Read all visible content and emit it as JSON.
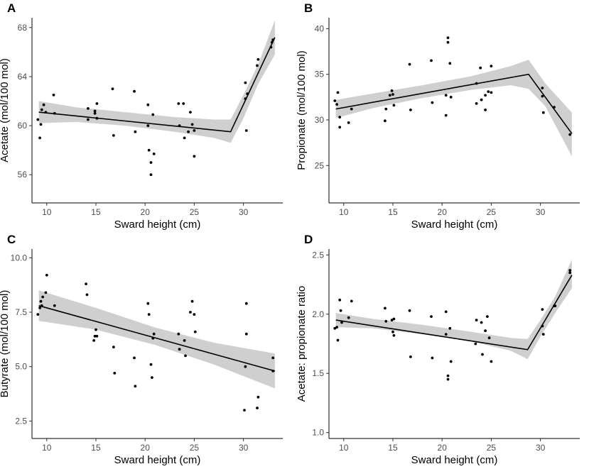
{
  "figure": {
    "xlabel": "Sward height (cm)",
    "xlim": [
      8.5,
      34.0
    ],
    "xticks": [
      10,
      15,
      20,
      25,
      30
    ],
    "xtick_labels": [
      "10",
      "15",
      "20",
      "25",
      "30"
    ]
  },
  "chart_data": [
    {
      "panel": "A",
      "type": "scatter",
      "ylabel": "Acetate (mol/100 mol)",
      "xlabel": "Sward height (cm)",
      "ylim": [
        53.7,
        68.8
      ],
      "yticks": [
        56,
        60,
        64,
        68
      ],
      "ytick_labels": [
        "56",
        "60",
        "64",
        "68"
      ],
      "points": [
        [
          9.1,
          60.5
        ],
        [
          9.3,
          59.0
        ],
        [
          9.4,
          60.1
        ],
        [
          9.5,
          61.3
        ],
        [
          9.7,
          61.7
        ],
        [
          9.9,
          61.1
        ],
        [
          10.7,
          62.5
        ],
        [
          10.8,
          61.0
        ],
        [
          14.2,
          60.5
        ],
        [
          14.2,
          61.4
        ],
        [
          14.9,
          61.2
        ],
        [
          14.9,
          61.0
        ],
        [
          15.1,
          61.8
        ],
        [
          15.1,
          60.6
        ],
        [
          16.7,
          63.0
        ],
        [
          16.8,
          59.2
        ],
        [
          18.9,
          62.8
        ],
        [
          19.0,
          59.5
        ],
        [
          20.3,
          61.7
        ],
        [
          20.3,
          60.0
        ],
        [
          20.4,
          58.0
        ],
        [
          20.6,
          57.0
        ],
        [
          20.6,
          56.0
        ],
        [
          20.8,
          60.9
        ],
        [
          20.9,
          57.7
        ],
        [
          23.4,
          61.8
        ],
        [
          23.5,
          60.0
        ],
        [
          23.9,
          61.8
        ],
        [
          24.0,
          59.0
        ],
        [
          24.4,
          59.5
        ],
        [
          24.6,
          61.1
        ],
        [
          24.8,
          60.1
        ],
        [
          25.0,
          57.5
        ],
        [
          25.0,
          59.6
        ],
        [
          30.2,
          63.5
        ],
        [
          30.2,
          62.2
        ],
        [
          30.3,
          59.6
        ],
        [
          30.4,
          62.6
        ],
        [
          31.4,
          64.9
        ],
        [
          31.5,
          65.4
        ],
        [
          32.8,
          66.4
        ],
        [
          32.9,
          66.8
        ],
        [
          33.0,
          67.0
        ]
      ],
      "fit": [
        [
          9.2,
          61.1
        ],
        [
          28.7,
          59.5
        ],
        [
          33.2,
          67.2
        ]
      ],
      "band_upper": [
        [
          9.2,
          62.0
        ],
        [
          13,
          61.5
        ],
        [
          18,
          61.1
        ],
        [
          23,
          60.7
        ],
        [
          27,
          60.5
        ],
        [
          28.7,
          60.5
        ],
        [
          30,
          62.5
        ],
        [
          31.5,
          65.0
        ],
        [
          33.2,
          68.6
        ]
      ],
      "band_lower": [
        [
          9.2,
          60.2
        ],
        [
          13,
          60.3
        ],
        [
          18,
          60.0
        ],
        [
          23,
          59.5
        ],
        [
          27,
          59.0
        ],
        [
          28.7,
          58.6
        ],
        [
          30,
          60.6
        ],
        [
          31.5,
          63.4
        ],
        [
          33.2,
          65.8
        ]
      ]
    },
    {
      "panel": "B",
      "type": "scatter",
      "ylabel": "Propionate (mol/100 mol)",
      "xlabel": "Sward height (cm)",
      "ylim": [
        20.9,
        41.2
      ],
      "yticks": [
        25,
        30,
        35,
        40
      ],
      "ytick_labels": [
        "25",
        "30",
        "35",
        "40"
      ],
      "points": [
        [
          9.1,
          32.1
        ],
        [
          9.3,
          31.7
        ],
        [
          9.4,
          33.0
        ],
        [
          9.6,
          29.2
        ],
        [
          9.6,
          30.3
        ],
        [
          10.5,
          29.7
        ],
        [
          10.8,
          31.2
        ],
        [
          14.2,
          29.9
        ],
        [
          14.3,
          31.2
        ],
        [
          14.7,
          32.7
        ],
        [
          14.9,
          33.2
        ],
        [
          15.0,
          32.8
        ],
        [
          15.1,
          31.6
        ],
        [
          16.7,
          36.1
        ],
        [
          16.8,
          31.1
        ],
        [
          18.9,
          36.5
        ],
        [
          19.0,
          31.9
        ],
        [
          20.4,
          30.5
        ],
        [
          20.4,
          32.7
        ],
        [
          20.6,
          39.0
        ],
        [
          20.6,
          38.5
        ],
        [
          20.8,
          36.2
        ],
        [
          20.9,
          32.5
        ],
        [
          23.5,
          34.0
        ],
        [
          23.5,
          31.8
        ],
        [
          23.9,
          35.7
        ],
        [
          24.0,
          32.2
        ],
        [
          24.4,
          31.1
        ],
        [
          24.4,
          32.7
        ],
        [
          24.7,
          33.1
        ],
        [
          25.0,
          33.0
        ],
        [
          25.0,
          35.9
        ],
        [
          30.2,
          33.5
        ],
        [
          30.2,
          32.6
        ],
        [
          30.3,
          30.8
        ],
        [
          31.4,
          31.4
        ],
        [
          33.0,
          28.4
        ]
      ],
      "fit": [
        [
          9.2,
          31.2
        ],
        [
          28.8,
          35.0
        ],
        [
          33.2,
          28.5
        ]
      ],
      "band_upper": [
        [
          9.2,
          32.2
        ],
        [
          13,
          32.9
        ],
        [
          18,
          33.8
        ],
        [
          23,
          34.8
        ],
        [
          27,
          35.9
        ],
        [
          28.8,
          36.6
        ],
        [
          30.5,
          34.0
        ],
        [
          33.2,
          30.8
        ]
      ],
      "band_lower": [
        [
          9.2,
          30.2
        ],
        [
          13,
          31.3
        ],
        [
          18,
          32.4
        ],
        [
          23,
          33.3
        ],
        [
          27,
          33.8
        ],
        [
          28.8,
          33.4
        ],
        [
          30.5,
          31.5
        ],
        [
          33.2,
          26.0
        ]
      ]
    },
    {
      "panel": "C",
      "type": "scatter",
      "ylabel": "Butyrate (mol/100 mol)",
      "xlabel": "Sward height (cm)",
      "ylim": [
        1.7,
        10.4
      ],
      "yticks": [
        2.5,
        5.0,
        7.5,
        10.0
      ],
      "ytick_labels": [
        "2.5",
        "5.0",
        "7.5",
        "10.0"
      ],
      "points": [
        [
          9.1,
          7.4
        ],
        [
          9.3,
          7.7
        ],
        [
          9.4,
          8.0
        ],
        [
          9.5,
          7.8
        ],
        [
          9.6,
          8.2
        ],
        [
          9.9,
          8.4
        ],
        [
          10.0,
          9.2
        ],
        [
          10.8,
          7.8
        ],
        [
          14.0,
          8.8
        ],
        [
          14.1,
          8.3
        ],
        [
          14.8,
          6.2
        ],
        [
          14.9,
          6.4
        ],
        [
          15.0,
          6.7
        ],
        [
          15.1,
          6.4
        ],
        [
          16.8,
          5.9
        ],
        [
          16.9,
          4.7
        ],
        [
          18.9,
          5.4
        ],
        [
          19.0,
          4.1
        ],
        [
          20.3,
          7.9
        ],
        [
          20.4,
          7.4
        ],
        [
          20.6,
          5.1
        ],
        [
          20.7,
          4.5
        ],
        [
          20.8,
          6.3
        ],
        [
          20.9,
          6.5
        ],
        [
          23.4,
          6.5
        ],
        [
          23.5,
          5.8
        ],
        [
          24.0,
          6.2
        ],
        [
          24.1,
          5.5
        ],
        [
          24.6,
          7.5
        ],
        [
          24.8,
          8.0
        ],
        [
          25.0,
          7.4
        ],
        [
          25.1,
          6.6
        ],
        [
          30.1,
          3.0
        ],
        [
          30.2,
          5.0
        ],
        [
          30.3,
          6.5
        ],
        [
          30.3,
          7.9
        ],
        [
          31.4,
          3.1
        ],
        [
          31.5,
          3.6
        ],
        [
          33.0,
          4.8
        ],
        [
          33.0,
          5.4
        ]
      ],
      "fit": [
        [
          9.2,
          7.8
        ],
        [
          33.2,
          4.8
        ]
      ],
      "band_upper": [
        [
          9.2,
          8.5
        ],
        [
          15,
          7.7
        ],
        [
          21,
          6.8
        ],
        [
          27,
          6.1
        ],
        [
          33.2,
          5.6
        ]
      ],
      "band_lower": [
        [
          9.2,
          7.1
        ],
        [
          15,
          6.7
        ],
        [
          21,
          6.0
        ],
        [
          27,
          5.1
        ],
        [
          33.2,
          4.0
        ]
      ]
    },
    {
      "panel": "D",
      "type": "scatter",
      "ylabel": "Acetate: propionate ratio",
      "xlabel": "Sward height (cm)",
      "ylim": [
        0.95,
        2.55
      ],
      "yticks": [
        1.0,
        1.5,
        2.0,
        2.5
      ],
      "ytick_labels": [
        "1.0",
        "1.5",
        "2.0",
        "2.5"
      ],
      "points": [
        [
          9.1,
          1.88
        ],
        [
          9.3,
          1.89
        ],
        [
          9.4,
          1.78
        ],
        [
          9.6,
          2.12
        ],
        [
          9.7,
          2.03
        ],
        [
          9.8,
          1.93
        ],
        [
          10.5,
          1.97
        ],
        [
          10.8,
          2.11
        ],
        [
          14.2,
          2.05
        ],
        [
          14.3,
          1.94
        ],
        [
          14.9,
          1.95
        ],
        [
          15.0,
          1.85
        ],
        [
          15.1,
          1.82
        ],
        [
          15.1,
          1.96
        ],
        [
          16.7,
          2.03
        ],
        [
          16.8,
          1.64
        ],
        [
          18.9,
          1.98
        ],
        [
          19.0,
          1.63
        ],
        [
          20.4,
          2.02
        ],
        [
          20.4,
          1.83
        ],
        [
          20.6,
          1.48
        ],
        [
          20.6,
          1.45
        ],
        [
          20.8,
          1.88
        ],
        [
          20.9,
          1.6
        ],
        [
          23.4,
          1.75
        ],
        [
          23.5,
          1.95
        ],
        [
          24.0,
          1.93
        ],
        [
          24.1,
          1.66
        ],
        [
          24.4,
          1.86
        ],
        [
          24.6,
          1.98
        ],
        [
          24.8,
          1.8
        ],
        [
          25.0,
          1.6
        ],
        [
          30.2,
          2.04
        ],
        [
          30.2,
          1.9
        ],
        [
          30.3,
          1.83
        ],
        [
          31.4,
          2.07
        ],
        [
          31.5,
          2.07
        ],
        [
          33.0,
          2.35
        ],
        [
          33.0,
          2.37
        ]
      ],
      "fit": [
        [
          9.2,
          1.95
        ],
        [
          28.7,
          1.7
        ],
        [
          33.2,
          2.33
        ]
      ],
      "band_upper": [
        [
          9.2,
          2.01
        ],
        [
          13,
          1.96
        ],
        [
          18,
          1.91
        ],
        [
          23,
          1.85
        ],
        [
          27,
          1.8
        ],
        [
          28.7,
          1.79
        ],
        [
          30,
          1.95
        ],
        [
          31.5,
          2.15
        ],
        [
          33.2,
          2.46
        ]
      ],
      "band_lower": [
        [
          9.2,
          1.89
        ],
        [
          13,
          1.88
        ],
        [
          18,
          1.83
        ],
        [
          23,
          1.77
        ],
        [
          27,
          1.69
        ],
        [
          28.7,
          1.62
        ],
        [
          30,
          1.81
        ],
        [
          31.5,
          2.01
        ],
        [
          33.2,
          2.22
        ]
      ]
    }
  ]
}
